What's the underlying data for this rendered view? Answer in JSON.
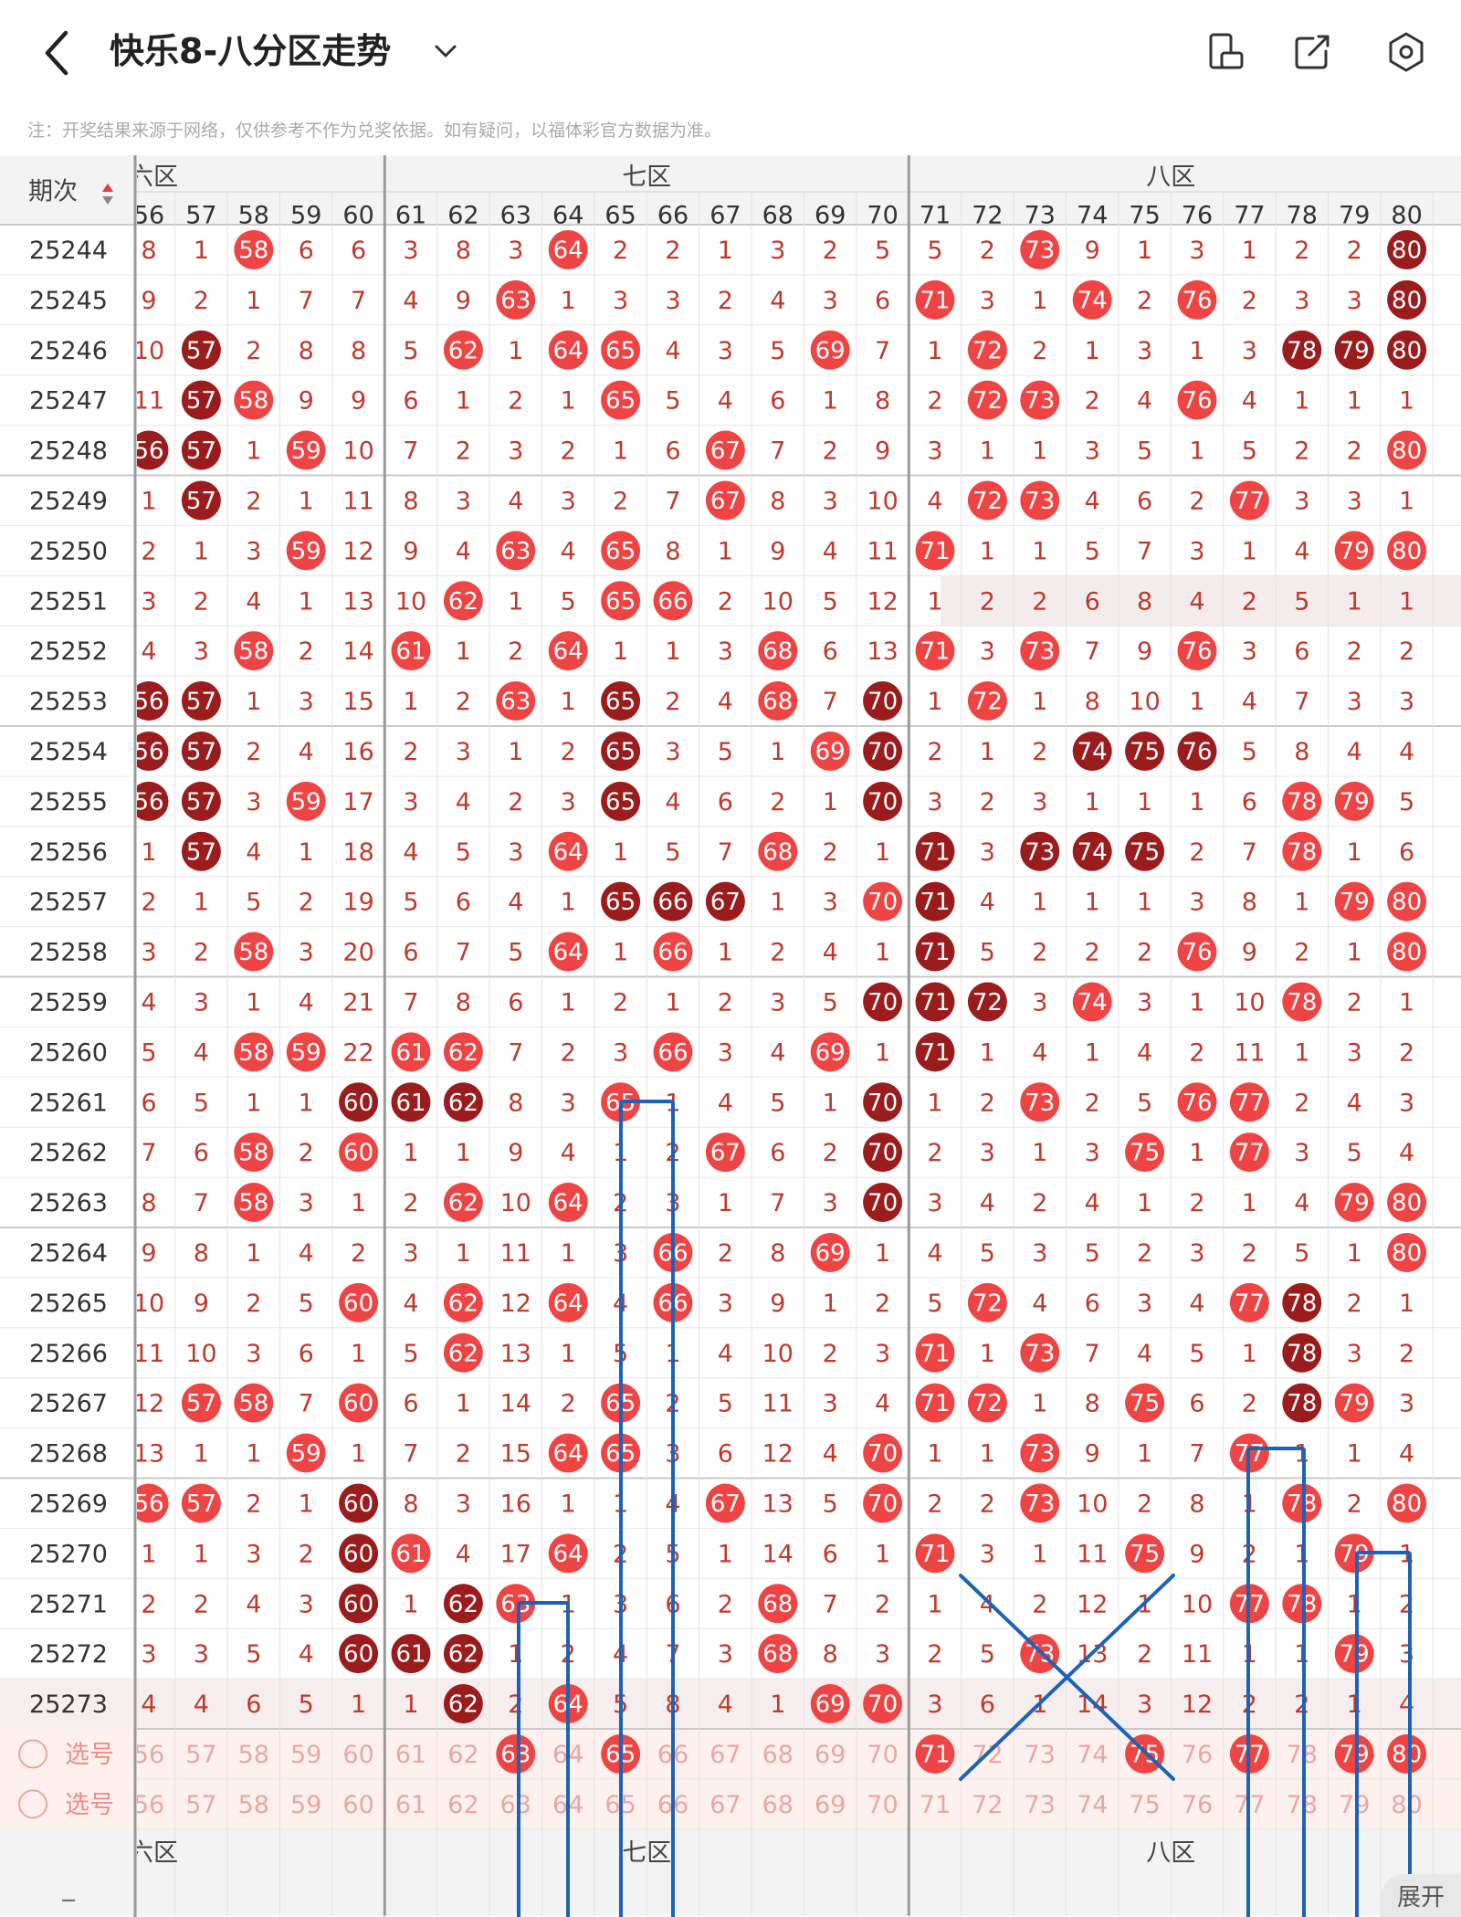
{
  "header": {
    "title": "快乐8-八分区走势",
    "back_icon": "chevron-left-icon",
    "dropdown_icon": "chevron-down-icon",
    "icons": [
      "phone-rotate-icon",
      "share-icon",
      "settings-icon"
    ]
  },
  "notice": "注：开奖结果来源于网络，仅供参考不作为兑奖依据。如有疑问，以福体彩官方数据为准。",
  "table": {
    "period_header": "期次",
    "zone_labels": [
      "六区",
      "七区",
      "八区"
    ],
    "columns": [
      "56",
      "57",
      "58",
      "59",
      "60",
      "61",
      "62",
      "63",
      "64",
      "65",
      "66",
      "67",
      "68",
      "69",
      "70",
      "71",
      "72",
      "73",
      "74",
      "75",
      "76",
      "77",
      "78",
      "79",
      "80"
    ],
    "rows": [
      {
        "period": "25244",
        "cells": [
          8,
          1,
          "h58",
          6,
          6,
          3,
          8,
          3,
          "h64",
          2,
          2,
          1,
          3,
          2,
          5,
          5,
          2,
          "h73",
          9,
          1,
          3,
          1,
          2,
          2,
          "d80"
        ]
      },
      {
        "period": "25245",
        "cells": [
          9,
          2,
          1,
          7,
          7,
          4,
          9,
          "h63",
          1,
          3,
          3,
          2,
          4,
          3,
          6,
          "h71",
          3,
          1,
          "h74",
          2,
          "h76",
          2,
          3,
          3,
          "d80"
        ]
      },
      {
        "period": "25246",
        "cells": [
          10,
          "d57",
          2,
          8,
          8,
          5,
          "h62",
          1,
          "h64",
          "h65",
          4,
          3,
          5,
          "h69",
          7,
          1,
          "h72",
          2,
          1,
          3,
          1,
          3,
          "d78",
          "d79",
          "d80"
        ]
      },
      {
        "period": "25247",
        "cells": [
          11,
          "d57",
          "h58",
          9,
          9,
          6,
          1,
          2,
          1,
          "h65",
          5,
          4,
          6,
          1,
          8,
          2,
          "h72",
          "h73",
          2,
          4,
          "h76",
          4,
          1,
          1,
          1
        ]
      },
      {
        "period": "25248",
        "cells": [
          "d56",
          "d57",
          1,
          "h59",
          10,
          7,
          2,
          3,
          2,
          1,
          6,
          "h67",
          7,
          2,
          9,
          3,
          1,
          1,
          3,
          5,
          1,
          5,
          2,
          2,
          "h80"
        ]
      },
      {
        "period": "25249",
        "cells": [
          1,
          "d57",
          2,
          1,
          11,
          8,
          3,
          4,
          3,
          2,
          7,
          "h67",
          8,
          3,
          10,
          4,
          "h72",
          "h73",
          4,
          6,
          2,
          "h77",
          3,
          3,
          1
        ]
      },
      {
        "period": "25250",
        "cells": [
          2,
          1,
          3,
          "h59",
          12,
          9,
          4,
          "h63",
          4,
          "h65",
          8,
          1,
          9,
          4,
          11,
          "h71",
          1,
          1,
          5,
          7,
          3,
          1,
          4,
          "h79",
          "h80"
        ]
      },
      {
        "period": "25251",
        "cells": [
          3,
          2,
          4,
          1,
          13,
          10,
          "h62",
          1,
          5,
          "h65",
          "h66",
          2,
          10,
          5,
          12,
          1,
          2,
          2,
          6,
          8,
          4,
          2,
          5,
          1,
          1
        ]
      },
      {
        "period": "25252",
        "cells": [
          4,
          3,
          "h58",
          2,
          14,
          "h61",
          1,
          2,
          "h64",
          1,
          1,
          3,
          "h68",
          6,
          13,
          "h71",
          3,
          "h73",
          7,
          9,
          "h76",
          3,
          6,
          2,
          2
        ]
      },
      {
        "period": "25253",
        "cells": [
          "d56",
          "d57",
          1,
          3,
          15,
          1,
          2,
          "h63",
          1,
          "d65",
          2,
          4,
          "h68",
          7,
          "d70",
          1,
          "h72",
          1,
          8,
          10,
          1,
          4,
          7,
          3,
          3
        ]
      },
      {
        "period": "25254",
        "cells": [
          "d56",
          "d57",
          2,
          4,
          16,
          2,
          3,
          1,
          2,
          "d65",
          3,
          5,
          1,
          "h69",
          "d70",
          2,
          1,
          2,
          "d74",
          "d75",
          "d76",
          5,
          8,
          4,
          4
        ]
      },
      {
        "period": "25255",
        "cells": [
          "d56",
          "d57",
          3,
          "h59",
          17,
          3,
          4,
          2,
          3,
          "d65",
          4,
          6,
          2,
          1,
          "d70",
          3,
          2,
          3,
          1,
          1,
          1,
          6,
          "h78",
          "h79",
          5
        ]
      },
      {
        "period": "25256",
        "cells": [
          1,
          "d57",
          4,
          1,
          18,
          4,
          5,
          3,
          "h64",
          1,
          5,
          7,
          "h68",
          2,
          1,
          "d71",
          3,
          "d73",
          "d74",
          "d75",
          2,
          7,
          "h78",
          1,
          6
        ]
      },
      {
        "period": "25257",
        "cells": [
          2,
          1,
          5,
          2,
          19,
          5,
          6,
          4,
          1,
          "d65",
          "d66",
          "d67",
          1,
          3,
          "h70",
          "d71",
          4,
          1,
          1,
          1,
          3,
          8,
          1,
          "h79",
          "h80"
        ]
      },
      {
        "period": "25258",
        "cells": [
          3,
          2,
          "h58",
          3,
          20,
          6,
          7,
          5,
          "h64",
          1,
          "h66",
          1,
          2,
          4,
          1,
          "d71",
          5,
          2,
          2,
          2,
          "h76",
          9,
          2,
          1,
          "h80"
        ]
      },
      {
        "period": "25259",
        "cells": [
          4,
          3,
          1,
          4,
          21,
          7,
          8,
          6,
          1,
          2,
          1,
          2,
          3,
          5,
          "d70",
          "d71",
          "d72",
          3,
          "h74",
          3,
          1,
          10,
          "h78",
          2,
          1
        ]
      },
      {
        "period": "25260",
        "cells": [
          5,
          4,
          "h58",
          "h59",
          22,
          "h61",
          "h62",
          7,
          2,
          3,
          "h66",
          3,
          4,
          "h69",
          1,
          "d71",
          1,
          4,
          1,
          4,
          2,
          11,
          1,
          3,
          2
        ]
      },
      {
        "period": "25261",
        "cells": [
          6,
          5,
          1,
          1,
          "d60",
          "d61",
          "d62",
          8,
          3,
          "h65",
          1,
          4,
          5,
          1,
          "d70",
          1,
          2,
          "h73",
          2,
          5,
          "h76",
          "h77",
          2,
          4,
          3
        ]
      },
      {
        "period": "25262",
        "cells": [
          7,
          6,
          "h58",
          2,
          "h60",
          1,
          1,
          9,
          4,
          1,
          2,
          "h67",
          6,
          2,
          "d70",
          2,
          3,
          1,
          3,
          "h75",
          1,
          "h77",
          3,
          5,
          4
        ]
      },
      {
        "period": "25263",
        "cells": [
          8,
          7,
          "h58",
          3,
          1,
          2,
          "h62",
          10,
          "h64",
          2,
          3,
          1,
          7,
          3,
          "d70",
          3,
          4,
          2,
          4,
          1,
          2,
          1,
          4,
          "h79",
          "h80"
        ]
      },
      {
        "period": "25264",
        "cells": [
          9,
          8,
          1,
          4,
          2,
          3,
          1,
          11,
          1,
          3,
          "h66",
          2,
          8,
          "h69",
          1,
          4,
          5,
          3,
          5,
          2,
          3,
          2,
          5,
          1,
          "h80"
        ]
      },
      {
        "period": "25265",
        "cells": [
          10,
          9,
          2,
          5,
          "h60",
          4,
          "h62",
          12,
          "h64",
          4,
          "h66",
          3,
          9,
          1,
          2,
          5,
          "h72",
          4,
          6,
          3,
          4,
          "h77",
          "d78",
          2,
          1
        ]
      },
      {
        "period": "25266",
        "cells": [
          11,
          10,
          3,
          6,
          1,
          5,
          "h62",
          13,
          1,
          5,
          1,
          4,
          10,
          2,
          3,
          "h71",
          1,
          "h73",
          7,
          4,
          5,
          1,
          "d78",
          3,
          2
        ]
      },
      {
        "period": "25267",
        "cells": [
          12,
          "h57",
          "h58",
          7,
          "h60",
          6,
          1,
          14,
          2,
          "h65",
          2,
          5,
          11,
          3,
          4,
          "h71",
          "h72",
          1,
          8,
          "h75",
          6,
          2,
          "d78",
          "h79",
          3
        ]
      },
      {
        "period": "25268",
        "cells": [
          13,
          1,
          1,
          "h59",
          1,
          7,
          2,
          15,
          "h64",
          "h65",
          3,
          6,
          12,
          4,
          "h70",
          1,
          1,
          "h73",
          9,
          1,
          7,
          "h77",
          1,
          1,
          4
        ]
      },
      {
        "period": "25269",
        "cells": [
          "h56",
          "h57",
          2,
          1,
          "d60",
          8,
          3,
          16,
          1,
          1,
          4,
          "h67",
          13,
          5,
          "h70",
          2,
          2,
          "h73",
          10,
          2,
          8,
          1,
          "h78",
          2,
          "h80"
        ]
      },
      {
        "period": "25270",
        "cells": [
          1,
          1,
          3,
          2,
          "d60",
          "h61",
          4,
          17,
          "h64",
          2,
          5,
          1,
          14,
          6,
          1,
          "h71",
          3,
          1,
          11,
          "h75",
          9,
          2,
          1,
          "h79",
          1
        ]
      },
      {
        "period": "25271",
        "cells": [
          2,
          2,
          4,
          3,
          "d60",
          1,
          "d62",
          "h63",
          1,
          3,
          6,
          2,
          "h68",
          7,
          2,
          1,
          4,
          2,
          12,
          1,
          10,
          "h77",
          "h78",
          1,
          2
        ]
      },
      {
        "period": "25272",
        "cells": [
          3,
          3,
          5,
          4,
          "d60",
          "d61",
          "d62",
          1,
          2,
          4,
          7,
          3,
          "h68",
          8,
          3,
          2,
          5,
          "h73",
          13,
          2,
          11,
          1,
          1,
          "h79",
          3
        ]
      },
      {
        "period": "25273",
        "cells": [
          4,
          4,
          6,
          5,
          1,
          1,
          "d62",
          2,
          "h64",
          5,
          8,
          4,
          1,
          "h69",
          "h70",
          3,
          6,
          1,
          14,
          3,
          12,
          2,
          2,
          1,
          4
        ]
      }
    ],
    "select_rows": [
      {
        "label": "选号",
        "selected": [
          "63",
          "65",
          "71",
          "75",
          "77",
          "79",
          "80"
        ]
      },
      {
        "label": "选号",
        "selected": []
      }
    ]
  },
  "expand_label": "展开",
  "colors": {
    "hit": "#ef4444",
    "hit_repeat": "#9b1c1c",
    "miss_text": "#c0392b",
    "mark": "#1c63b8"
  }
}
